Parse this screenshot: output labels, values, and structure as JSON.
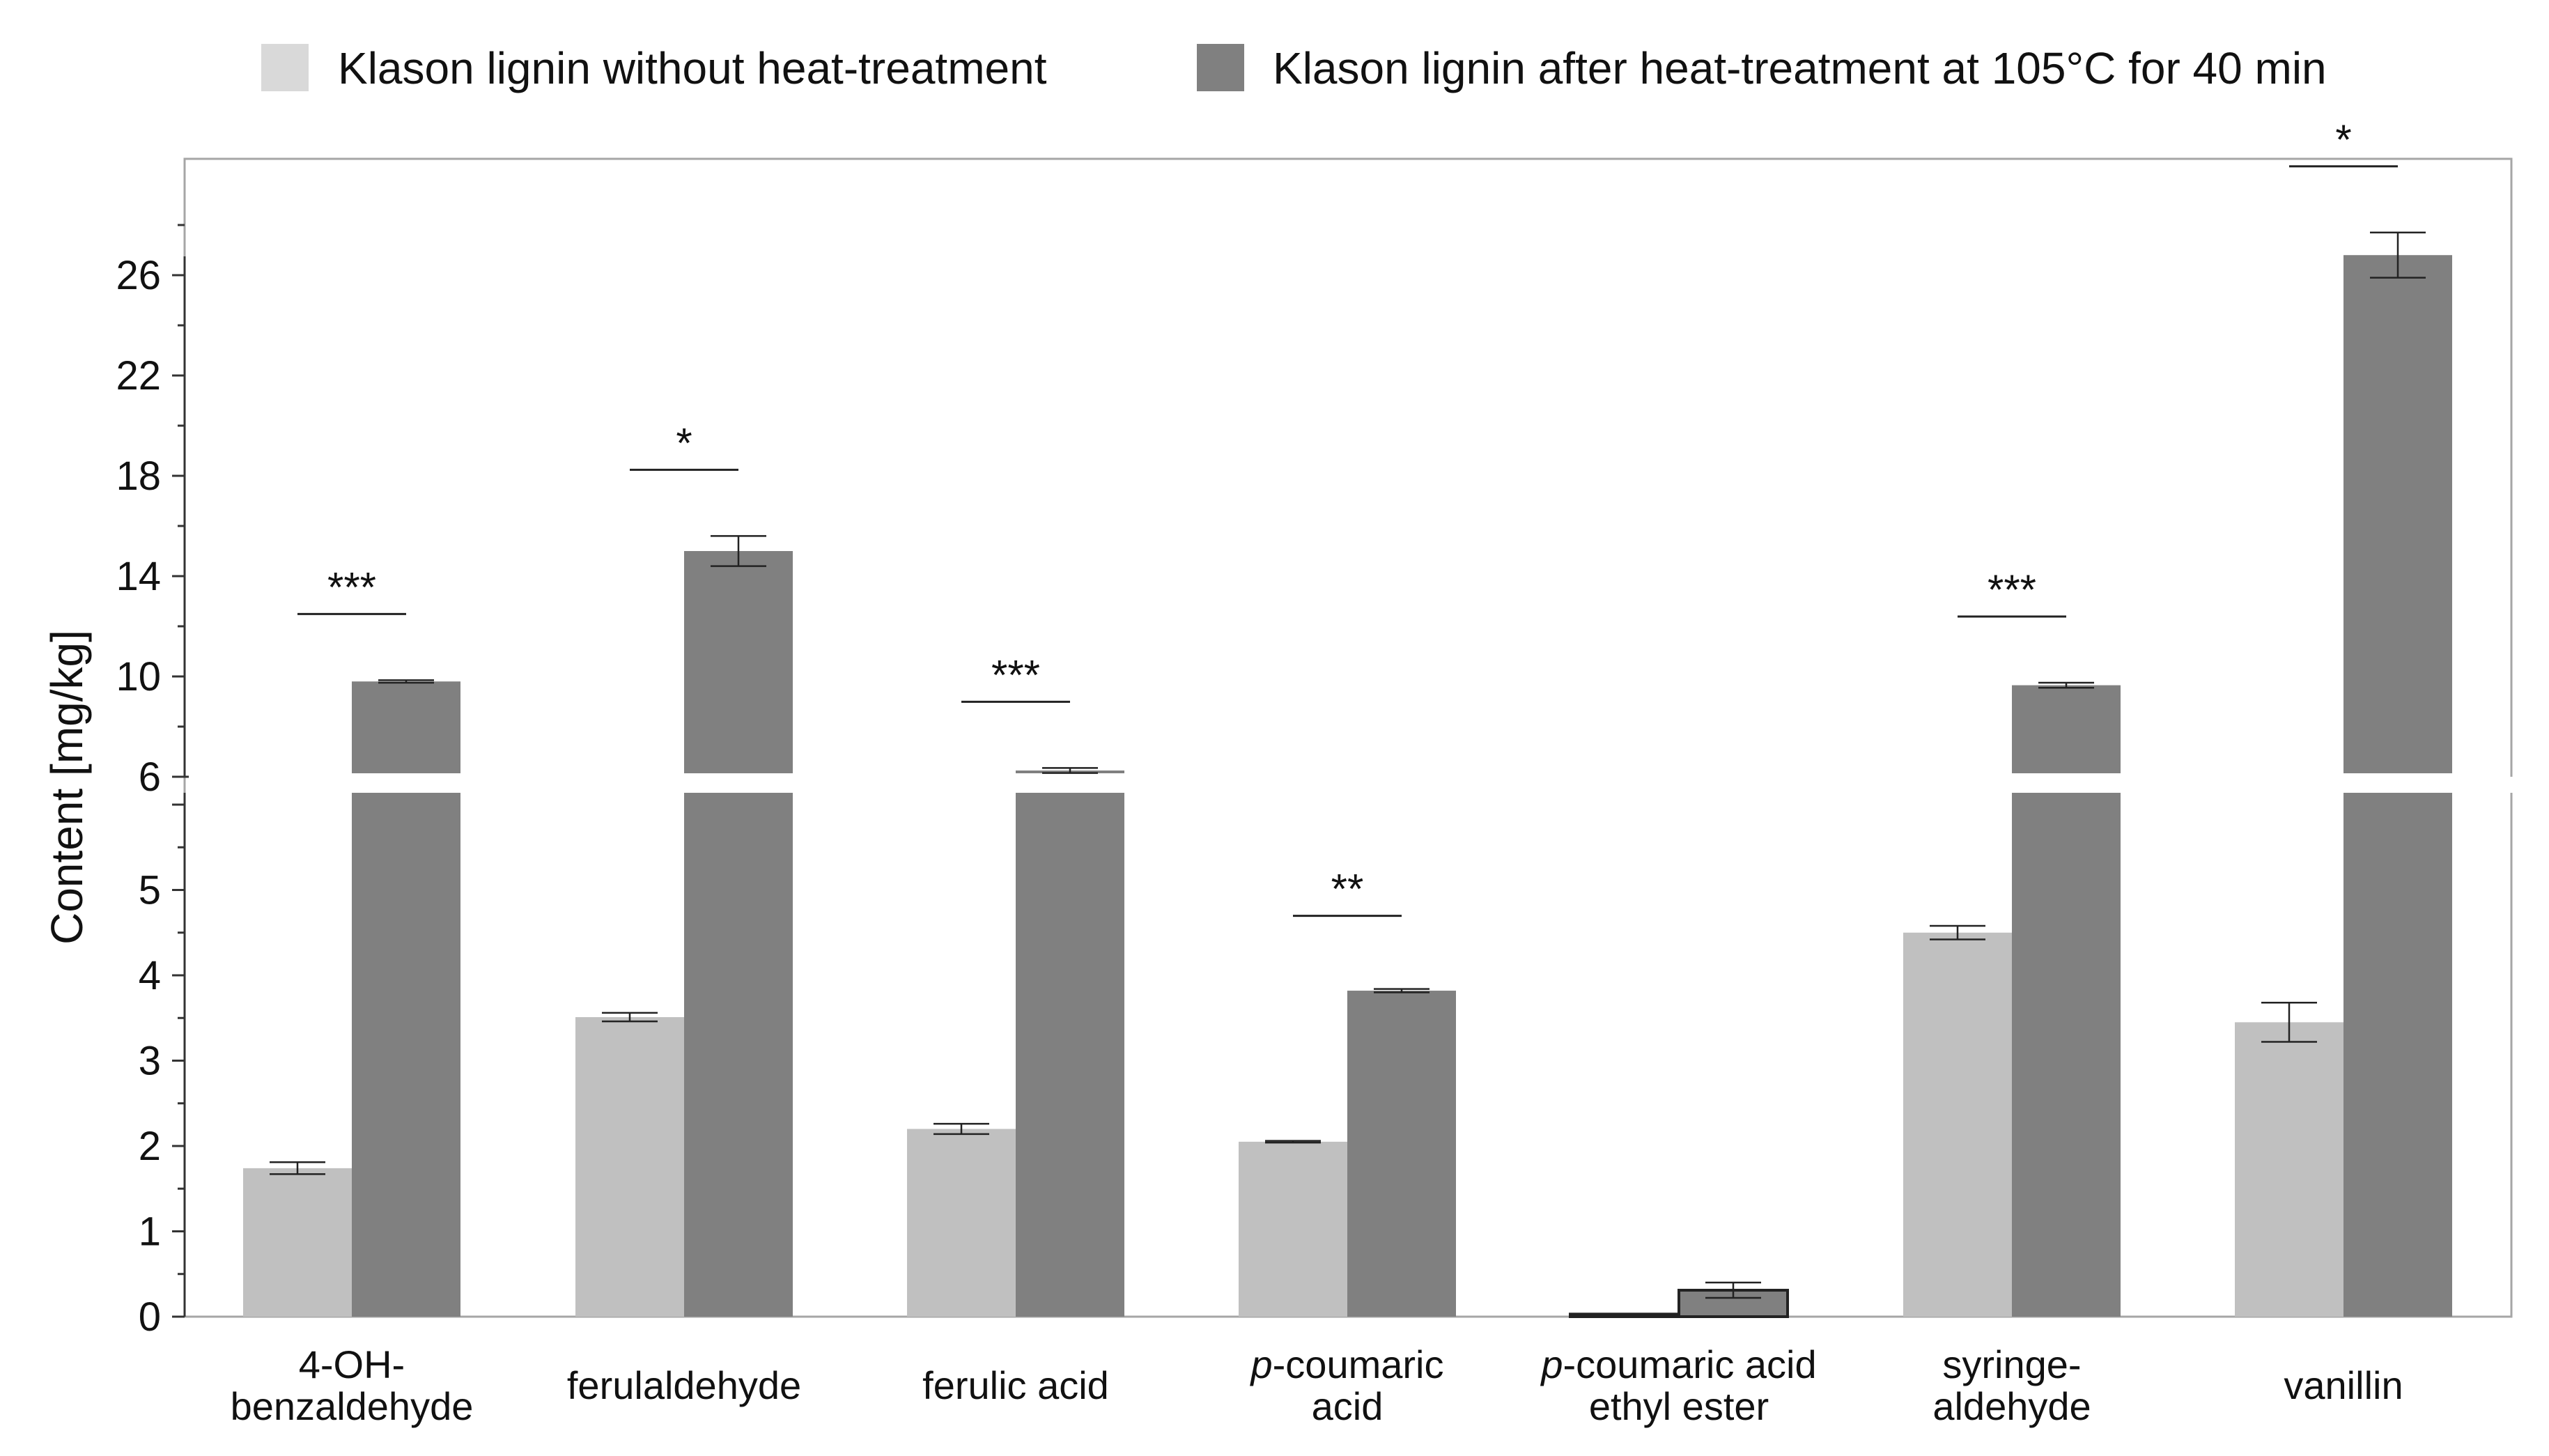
{
  "chart_data": {
    "type": "bar",
    "title": "",
    "xlabel": "",
    "ylabel": "Content [mg/kg]",
    "axis_break": true,
    "lower_axis": {
      "ylim": [
        0,
        6
      ],
      "ticks": [
        0,
        1,
        2,
        3,
        4,
        5
      ]
    },
    "upper_axis": {
      "ylim": [
        6,
        29
      ],
      "ticks": [
        6,
        10,
        14,
        18,
        22,
        26
      ]
    },
    "legend": {
      "placement": "top"
    },
    "categories": [
      {
        "lines": [
          "4-OH-",
          "benzaldehyde"
        ],
        "italic_prefix": ""
      },
      {
        "lines": [
          "ferulaldehyde"
        ],
        "italic_prefix": ""
      },
      {
        "lines": [
          "ferulic acid"
        ],
        "italic_prefix": ""
      },
      {
        "lines": [
          "-coumaric",
          "acid"
        ],
        "italic_prefix": "p"
      },
      {
        "lines": [
          "-coumaric acid",
          "ethyl ester"
        ],
        "italic_prefix": "p"
      },
      {
        "lines": [
          "syringe-",
          "aldehyde"
        ],
        "italic_prefix": ""
      },
      {
        "lines": [
          "vanillin"
        ],
        "italic_prefix": ""
      }
    ],
    "series": [
      {
        "name": "Klason lignin without heat-treatment",
        "color": "#c0c0c0",
        "legend_color": "#d9d9d9",
        "values": [
          1.74,
          3.51,
          2.2,
          2.05,
          0.03,
          4.5,
          3.45
        ],
        "errors": [
          0.07,
          0.05,
          0.06,
          0.01,
          0.005,
          0.08,
          0.23
        ]
      },
      {
        "name": "Klason lignin after heat-treatment at 105°C for 40 min",
        "color": "#808080",
        "legend_color": "#808080",
        "values": [
          9.8,
          15.0,
          6.25,
          3.82,
          0.31,
          9.65,
          26.8
        ],
        "errors": [
          0.05,
          0.6,
          0.1,
          0.02,
          0.09,
          0.1,
          0.9
        ]
      }
    ],
    "significance": [
      "***",
      "*",
      "***",
      "**",
      "",
      "***",
      "*"
    ]
  }
}
